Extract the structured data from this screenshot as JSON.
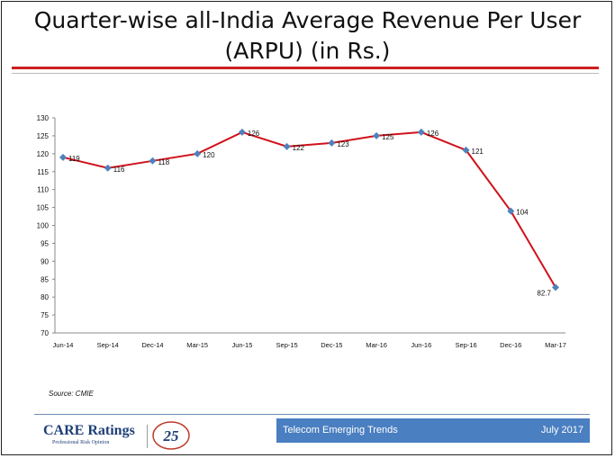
{
  "header": {
    "title_line1": "Quarter-wise all-India Average Revenue Per User",
    "title_line2": "(ARPU) (in Rs.)"
  },
  "chart_data": {
    "type": "line",
    "categories": [
      "Jun-14",
      "Sep-14",
      "Dec-14",
      "Mar-15",
      "Jun-15",
      "Sep-15",
      "Dec-15",
      "Mar-16",
      "Jun-16",
      "Sep-16",
      "Dec-16",
      "Mar-17"
    ],
    "values": [
      119,
      116,
      118,
      120,
      126,
      122,
      123,
      125,
      126,
      121,
      104,
      82.7
    ],
    "data_labels": [
      "119",
      "116",
      "118",
      "120",
      "126",
      "122",
      "123",
      "125",
      "126",
      "121",
      "104",
      "82.7"
    ],
    "ylim": [
      70,
      130
    ],
    "yticks": [
      70,
      75,
      80,
      85,
      90,
      95,
      100,
      105,
      110,
      115,
      120,
      125,
      130
    ],
    "grid": false,
    "line_color": "#d0121b",
    "marker_color": "#4f81bd",
    "title": "",
    "xlabel": "",
    "ylabel": ""
  },
  "source": "Source: CMIE",
  "footer": {
    "title": "Telecom Emerging Trends",
    "date": "July 2017",
    "logo_text": "CARE Ratings",
    "logo_tagline": "Professional Risk Opinion",
    "anniversary": "25"
  },
  "colors": {
    "accent_red": "#cc1f1f",
    "footer_blue": "#4a7fc1",
    "brand_navy": "#1e3f78"
  }
}
